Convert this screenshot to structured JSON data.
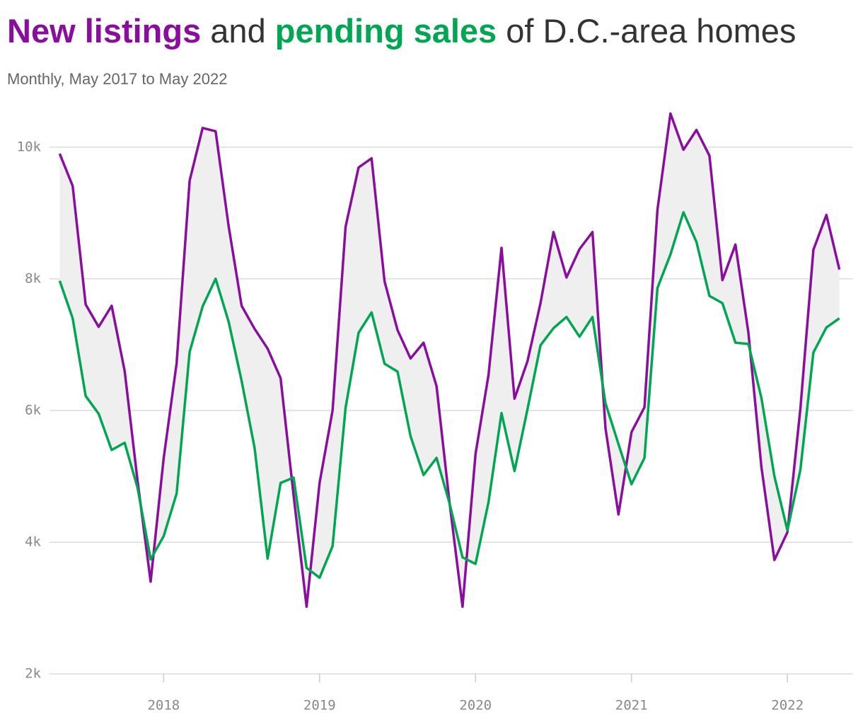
{
  "chart_data": {
    "type": "line",
    "title_parts": [
      {
        "text": "New listings",
        "color": "#8a0e9e"
      },
      {
        "text": "and",
        "color": "#333333"
      },
      {
        "text": "pending sales",
        "color": "#00a651"
      },
      {
        "text": "of D.C.-area homes",
        "color": "#333333"
      }
    ],
    "subtitle": "Monthly, May 2017 to May 2022",
    "x": [
      "2017-05",
      "2017-06",
      "2017-07",
      "2017-08",
      "2017-09",
      "2017-10",
      "2017-11",
      "2017-12",
      "2018-01",
      "2018-02",
      "2018-03",
      "2018-04",
      "2018-05",
      "2018-06",
      "2018-07",
      "2018-08",
      "2018-09",
      "2018-10",
      "2018-11",
      "2018-12",
      "2019-01",
      "2019-02",
      "2019-03",
      "2019-04",
      "2019-05",
      "2019-06",
      "2019-07",
      "2019-08",
      "2019-09",
      "2019-10",
      "2019-11",
      "2019-12",
      "2020-01",
      "2020-02",
      "2020-03",
      "2020-04",
      "2020-05",
      "2020-06",
      "2020-07",
      "2020-08",
      "2020-09",
      "2020-10",
      "2020-11",
      "2020-12",
      "2021-01",
      "2021-02",
      "2021-03",
      "2021-04",
      "2021-05",
      "2021-06",
      "2021-07",
      "2021-08",
      "2021-09",
      "2021-10",
      "2021-11",
      "2021-12",
      "2022-01",
      "2022-02",
      "2022-03",
      "2022-04",
      "2022-05"
    ],
    "series": [
      {
        "name": "New listings",
        "color": "#8a0e9e",
        "values": [
          9900,
          9410,
          7610,
          7270,
          7590,
          6600,
          4920,
          3400,
          5270,
          6720,
          9490,
          10290,
          10240,
          8800,
          7590,
          7240,
          6940,
          6490,
          4710,
          3020,
          4900,
          6000,
          8790,
          9690,
          9830,
          7960,
          7220,
          6790,
          7030,
          6370,
          4600,
          3020,
          5340,
          6540,
          8470,
          6180,
          6750,
          7630,
          8710,
          8020,
          8450,
          8710,
          5730,
          4420,
          5670,
          6050,
          9050,
          10510,
          9960,
          10260,
          9870,
          7980,
          8520,
          7180,
          5140,
          3730,
          4150,
          6030,
          8440,
          8970,
          8140
        ]
      },
      {
        "name": "Pending sales",
        "color": "#00a651",
        "values": [
          7970,
          7400,
          6220,
          5950,
          5400,
          5510,
          4820,
          3740,
          4090,
          4740,
          6890,
          7580,
          8000,
          7350,
          6450,
          5430,
          3750,
          4900,
          4980,
          3610,
          3460,
          3940,
          6040,
          7180,
          7490,
          6710,
          6590,
          5610,
          5020,
          5280,
          4590,
          3770,
          3670,
          4610,
          5960,
          5080,
          6020,
          6990,
          7250,
          7420,
          7120,
          7420,
          6110,
          5490,
          4880,
          5280,
          7860,
          8370,
          9010,
          8560,
          7740,
          7630,
          7030,
          7010,
          6190,
          5000,
          4180,
          5100,
          6880,
          7260,
          7400
        ]
      }
    ],
    "band_color": "#efefef",
    "xlim": [
      "2017-04",
      "2022-06"
    ],
    "xticks": [
      {
        "value": "2018-01",
        "label": "2018"
      },
      {
        "value": "2019-01",
        "label": "2019"
      },
      {
        "value": "2020-01",
        "label": "2020"
      },
      {
        "value": "2021-01",
        "label": "2021"
      },
      {
        "value": "2022-01",
        "label": "2022"
      }
    ],
    "ylim": [
      2000,
      10600
    ],
    "yticks": [
      {
        "value": 2000,
        "label": "2k"
      },
      {
        "value": 4000,
        "label": "4k"
      },
      {
        "value": 6000,
        "label": "6k"
      },
      {
        "value": 8000,
        "label": "8k"
      },
      {
        "value": 10000,
        "label": "10k"
      }
    ],
    "grid": true
  }
}
